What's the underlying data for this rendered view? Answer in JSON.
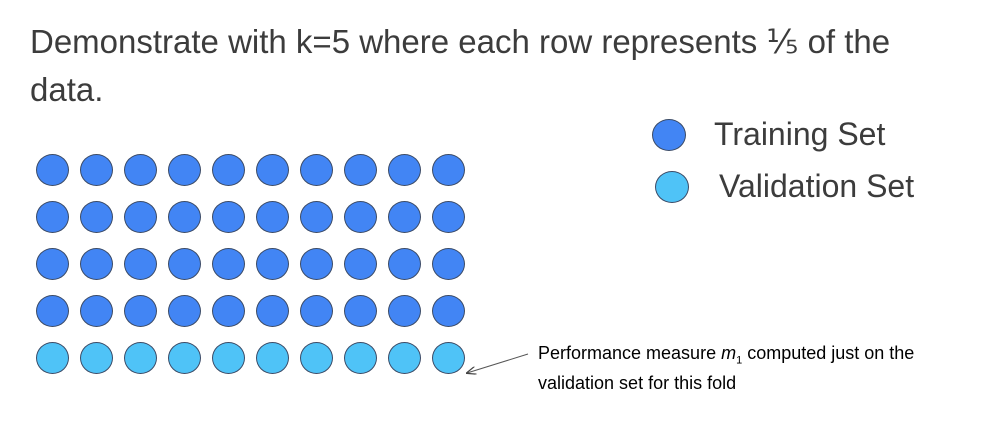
{
  "title": "Demonstrate with k=5 where each row represents ⅕ of the data.",
  "colors": {
    "training": "#4285f4",
    "validation": "#4fc3f7",
    "outline": "#3a4a66"
  },
  "grid": {
    "columns": 10,
    "rows": [
      "training",
      "training",
      "training",
      "training",
      "validation"
    ]
  },
  "legend": {
    "training_label": "Training Set",
    "validation_label": "Validation Set"
  },
  "annotation": {
    "prefix": "Performance measure ",
    "symbol": "m",
    "subscript": "1",
    "suffix": " computed just on the validation set for this fold"
  }
}
